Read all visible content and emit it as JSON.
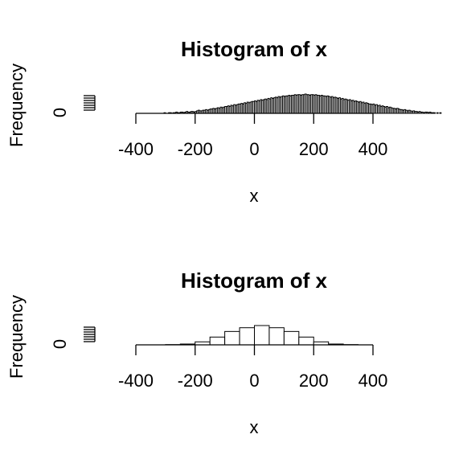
{
  "chart_data": [
    {
      "type": "bar",
      "title": "Histogram of x",
      "xlabel": "x",
      "ylabel": "Frequency",
      "x_ticks": [
        "-400",
        "-200",
        "0",
        "200",
        "400"
      ],
      "x_tick_values": [
        -400,
        -200,
        0,
        200,
        400
      ],
      "y_ticks": [
        "0"
      ],
      "xlim": [
        -400,
        400
      ],
      "ylim": [
        0,
        31
      ],
      "bin_width": 5,
      "bin_start": -305,
      "values": [
        1,
        0,
        0,
        1,
        1,
        0,
        1,
        1,
        2,
        1,
        1,
        2,
        2,
        1,
        2,
        3,
        2,
        2,
        3,
        3,
        2,
        3,
        4,
        5,
        4,
        4,
        5,
        5,
        6,
        5,
        6,
        7,
        7,
        8,
        7,
        8,
        9,
        8,
        10,
        9,
        10,
        11,
        11,
        12,
        11,
        13,
        12,
        14,
        13,
        14,
        15,
        15,
        16,
        15,
        17,
        16,
        18,
        17,
        18,
        19,
        19,
        20,
        19,
        21,
        20,
        22,
        21,
        22,
        23,
        22,
        24,
        23,
        25,
        24,
        25,
        26,
        25,
        27,
        26,
        27,
        28,
        27,
        28,
        28,
        29,
        28,
        29,
        29,
        30,
        29,
        30,
        30,
        29,
        30,
        30,
        31,
        30,
        30,
        29,
        30,
        30,
        29,
        30,
        29,
        29,
        28,
        29,
        28,
        28,
        27,
        28,
        27,
        26,
        27,
        25,
        26,
        25,
        24,
        25,
        23,
        24,
        22,
        23,
        22,
        21,
        22,
        20,
        21,
        19,
        20,
        19,
        18,
        19,
        17,
        18,
        16,
        17,
        16,
        15,
        15,
        14,
        15,
        13,
        14,
        12,
        13,
        11,
        12,
        11,
        10,
        11,
        9,
        10,
        9,
        8,
        8,
        7,
        8,
        7,
        6,
        6,
        5,
        6,
        5,
        4,
        5,
        4,
        3,
        4,
        3,
        3,
        2,
        3,
        2,
        2,
        1,
        2,
        2,
        1,
        2,
        1,
        1,
        1,
        0,
        1,
        0,
        1
      ]
    },
    {
      "type": "bar",
      "title": "Histogram of x",
      "xlabel": "x",
      "ylabel": "Frequency",
      "x_ticks": [
        "-400",
        "-200",
        "0",
        "200",
        "400"
      ],
      "x_tick_values": [
        -400,
        -200,
        0,
        200,
        400
      ],
      "y_ticks": [
        "0"
      ],
      "xlim": [
        -400,
        400
      ],
      "ylim": [
        0,
        31
      ],
      "bin_width": 50,
      "bin_start": -300,
      "values": [
        0.4,
        1.3,
        4.8,
        12.5,
        21.5,
        27.5,
        31,
        27.5,
        21.5,
        12.5,
        4.8,
        1.3,
        0.4
      ]
    }
  ]
}
